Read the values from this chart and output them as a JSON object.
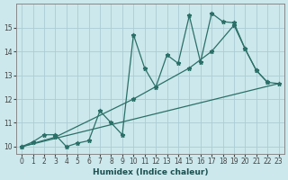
{
  "xlabel": "Humidex (Indice chaleur)",
  "bg_color": "#cce8ec",
  "line_color": "#2a7068",
  "grid_color": "#aacdd4",
  "xlim_min": -0.5,
  "xlim_max": 23.5,
  "ylim_min": 9.7,
  "ylim_max": 16.0,
  "xticks": [
    0,
    1,
    2,
    3,
    4,
    5,
    6,
    7,
    8,
    9,
    10,
    11,
    12,
    13,
    14,
    15,
    16,
    17,
    18,
    19,
    20,
    21,
    22,
    23
  ],
  "yticks": [
    10,
    11,
    12,
    13,
    14,
    15
  ],
  "line1_x": [
    0,
    1,
    2,
    3,
    4,
    5,
    6,
    7,
    8,
    9,
    10,
    11,
    12,
    13,
    14,
    15,
    16,
    17,
    18,
    19,
    20,
    21,
    22
  ],
  "line1_y": [
    10.0,
    10.2,
    10.5,
    10.5,
    10.0,
    10.15,
    10.25,
    11.5,
    11.0,
    10.5,
    14.7,
    13.3,
    12.5,
    13.85,
    13.5,
    15.5,
    13.55,
    15.6,
    15.25,
    15.2,
    14.1,
    13.2,
    12.7
  ],
  "line2_x": [
    0,
    3,
    10,
    15,
    17,
    19,
    20,
    21,
    22,
    23
  ],
  "line2_y": [
    10.0,
    10.4,
    12.0,
    13.3,
    14.0,
    15.1,
    14.1,
    13.2,
    12.7,
    12.65
  ],
  "line3_x": [
    0,
    23
  ],
  "line3_y": [
    10.0,
    12.65
  ]
}
